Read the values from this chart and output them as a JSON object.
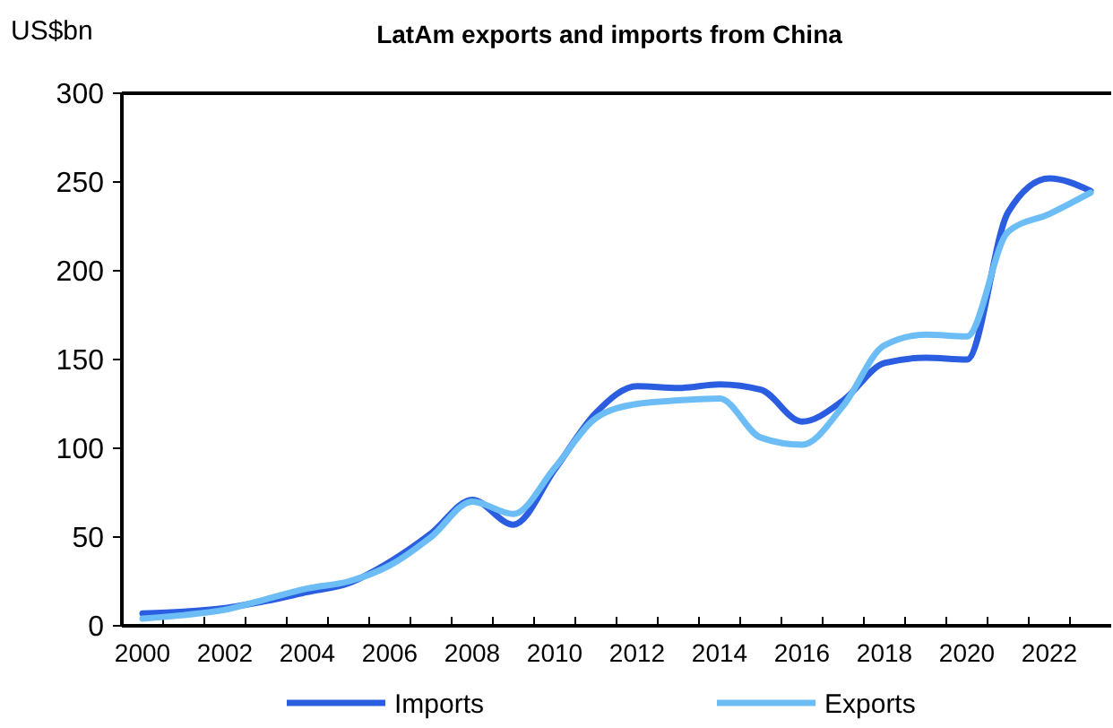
{
  "chart_data": {
    "type": "line",
    "title": "LatAm exports and imports from China",
    "ylabel": "US$bn",
    "categories": [
      "2000",
      null,
      "2002",
      null,
      "2004",
      null,
      "2006",
      null,
      "2008",
      null,
      "2010",
      null,
      "2012",
      null,
      "2014",
      null,
      "2016",
      null,
      "2018",
      null,
      "2020",
      null,
      "2022",
      null
    ],
    "series": [
      {
        "name": "Imports",
        "color": "#2a5de0",
        "values": [
          7,
          8,
          10,
          14,
          19,
          24,
          36,
          52,
          71,
          57,
          88,
          120,
          135,
          134,
          136,
          133,
          115,
          127,
          148,
          151,
          150,
          233,
          252,
          245
        ]
      },
      {
        "name": "Exports",
        "color": "#6cbdf5",
        "values": [
          4,
          6,
          9,
          15,
          21,
          25,
          34,
          50,
          70,
          63,
          89,
          117,
          125,
          127,
          128,
          106,
          102,
          124,
          158,
          164,
          163,
          222,
          232,
          244
        ]
      }
    ],
    "ylim": [
      0,
      300
    ],
    "yticks": [
      0,
      50,
      100,
      150,
      200,
      250,
      300
    ],
    "grid": false,
    "legend": "bottom",
    "line_style": "solid",
    "marker": "none"
  }
}
